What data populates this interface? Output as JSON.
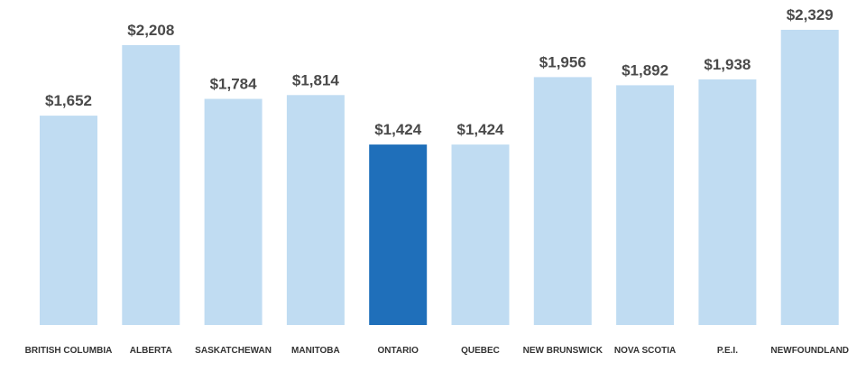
{
  "chart_data": {
    "type": "bar",
    "categories": [
      "BRITISH COLUMBIA",
      "ALBERTA",
      "SASKATCHEWAN",
      "MANITOBA",
      "ONTARIO",
      "QUEBEC",
      "NEW BRUNSWICK",
      "NOVA SCOTIA",
      "P.E.I.",
      "NEWFOUNDLAND"
    ],
    "values": [
      1652,
      2208,
      1784,
      1814,
      1424,
      1424,
      1956,
      1892,
      1938,
      2329
    ],
    "value_labels": [
      "$1,652",
      "$2,208",
      "$1,784",
      "$1,814",
      "$1,424",
      "$1,424",
      "$1,956",
      "$1,892",
      "$1,938",
      "$2,329"
    ],
    "highlight_index": 4,
    "colors": {
      "default": "#c0dcf2",
      "highlight": "#1f6fba",
      "value_text": "#4a4a4a",
      "category_text": "#333333"
    },
    "ylim": [
      0,
      2329
    ],
    "grid": false,
    "legend": "none"
  }
}
